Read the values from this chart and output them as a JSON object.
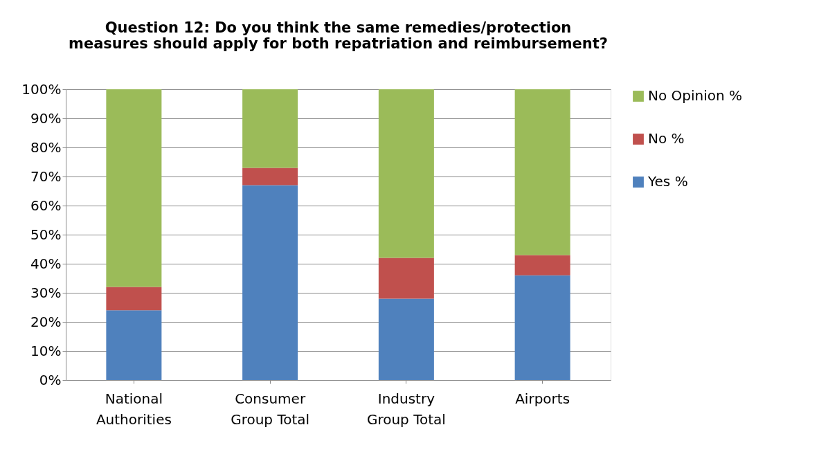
{
  "chart_data": {
    "type": "bar",
    "stacked": true,
    "title": "Question 12: Do you think the same remedies/protection measures should apply for both repatriation and reimbursement?",
    "categories": [
      "National Authorities",
      "Consumer Group Total",
      "Industry Group Total",
      "Airports"
    ],
    "series": [
      {
        "name": "Yes  %",
        "color": "#4f81bd",
        "values": [
          24,
          67,
          28,
          36
        ]
      },
      {
        "name": "No %",
        "color": "#c0504d",
        "values": [
          8,
          6,
          14,
          7
        ]
      },
      {
        "name": "No Opinion %",
        "color": "#9bbb59",
        "values": [
          68,
          27,
          58,
          57
        ]
      }
    ],
    "ylim": [
      0,
      100
    ],
    "yticks": [
      {
        "value": 0,
        "label": "0%"
      },
      {
        "value": 10,
        "label": "10%"
      },
      {
        "value": 20,
        "label": "20%"
      },
      {
        "value": 30,
        "label": "30%"
      },
      {
        "value": 40,
        "label": "40%"
      },
      {
        "value": 50,
        "label": "50%"
      },
      {
        "value": 60,
        "label": "60%"
      },
      {
        "value": 70,
        "label": "70%"
      },
      {
        "value": 80,
        "label": "80%"
      },
      {
        "value": 90,
        "label": "90%"
      },
      {
        "value": 100,
        "label": "100%"
      }
    ],
    "grid": "y",
    "legend": "right"
  }
}
